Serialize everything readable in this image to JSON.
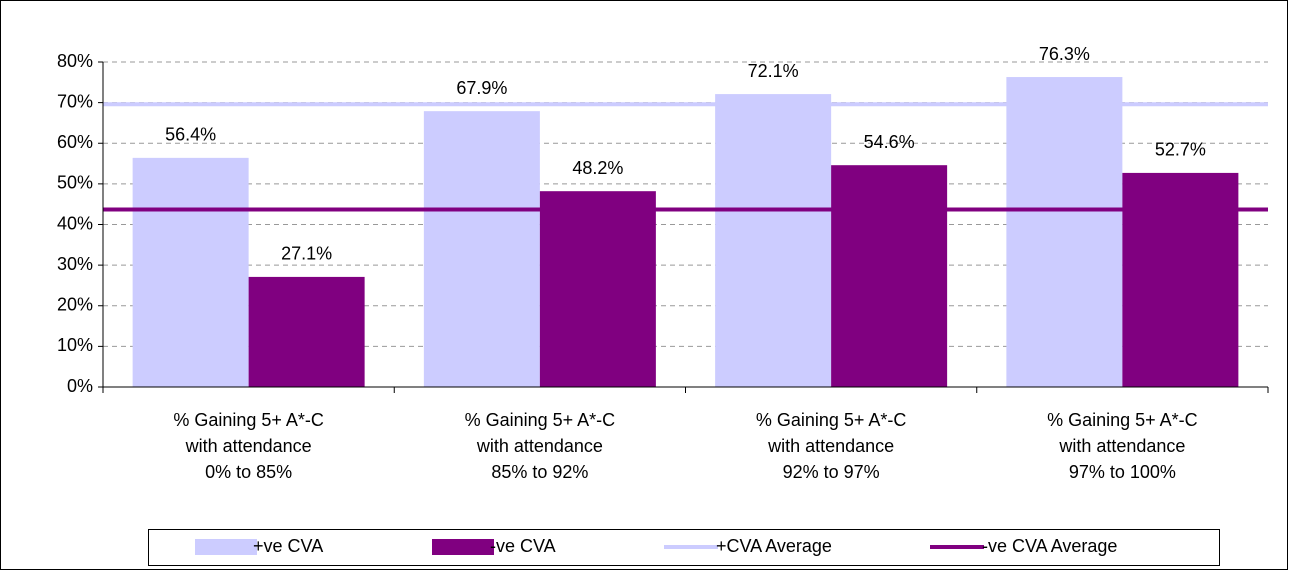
{
  "chart_data": {
    "type": "bar",
    "categories": [
      "% Gaining 5+ A*-C\nwith attendance\n0% to 85%",
      "% Gaining 5+ A*-C\nwith attendance\n85% to 92%",
      "% Gaining 5+ A*-C\nwith attendance\n92% to 97%",
      "% Gaining 5+ A*-C\nwith attendance\n97% to 100%"
    ],
    "series": [
      {
        "name": "+ve CVA",
        "color": "#ccccff",
        "values": [
          56.4,
          67.9,
          72.1,
          76.3
        ],
        "value_labels": [
          "56.4%",
          "67.9%",
          "72.1%",
          "76.3%"
        ]
      },
      {
        "name": "-ve CVA",
        "color": "#800080",
        "values": [
          27.1,
          48.2,
          54.6,
          52.7
        ],
        "value_labels": [
          "27.1%",
          "48.2%",
          "54.6%",
          "52.7%"
        ]
      }
    ],
    "reference_lines": [
      {
        "name": "+CVA Average",
        "color": "#ccccff",
        "value": 69.6
      },
      {
        "name": "-ve CVA Average",
        "color": "#800080",
        "value": 43.7
      }
    ],
    "ylim": [
      0,
      80
    ],
    "yticks": [
      {
        "value": 0,
        "label": "0%"
      },
      {
        "value": 10,
        "label": "10%"
      },
      {
        "value": 20,
        "label": "20%"
      },
      {
        "value": 30,
        "label": "30%"
      },
      {
        "value": 40,
        "label": "40%"
      },
      {
        "value": 50,
        "label": "50%"
      },
      {
        "value": 60,
        "label": "60%"
      },
      {
        "value": 70,
        "label": "70%"
      },
      {
        "value": 80,
        "label": "80%"
      }
    ],
    "grid": true,
    "legend": "bottom"
  }
}
